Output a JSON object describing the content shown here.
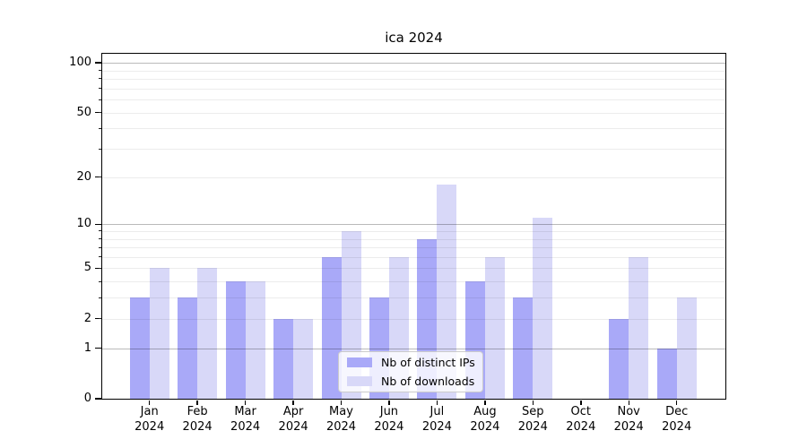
{
  "title": "ica 2024",
  "chart_data": {
    "type": "bar",
    "title": "ica 2024",
    "xlabel": "",
    "ylabel": "",
    "yscale": "log1p",
    "grid": true,
    "legend_position": "lower center",
    "background_color": "#ffffff",
    "categories": [
      "Jan 2024",
      "Feb 2024",
      "Mar 2024",
      "Apr 2024",
      "May 2024",
      "Jun 2024",
      "Jul 2024",
      "Aug 2024",
      "Sep 2024",
      "Oct 2024",
      "Nov 2024",
      "Dec 2024"
    ],
    "series": [
      {
        "name": "Nb of distinct IPs",
        "color": "#a9a9f8",
        "values": [
          3,
          3,
          4,
          2,
          6,
          3,
          8,
          4,
          3,
          0,
          2,
          1
        ]
      },
      {
        "name": "Nb of downloads",
        "color": "#d8d8f8",
        "values": [
          5,
          5,
          4,
          2,
          9,
          6,
          18,
          6,
          11,
          0,
          6,
          3
        ]
      }
    ],
    "y_tick_labels": [
      0,
      1,
      2,
      5,
      10,
      20,
      50,
      100
    ],
    "y_major_gridlines": [
      1,
      10,
      100
    ],
    "y_minor_gridlines": [
      2,
      3,
      4,
      5,
      6,
      7,
      8,
      9,
      20,
      30,
      40,
      50,
      60,
      70,
      80,
      90
    ],
    "ylim": [
      0,
      113
    ]
  }
}
